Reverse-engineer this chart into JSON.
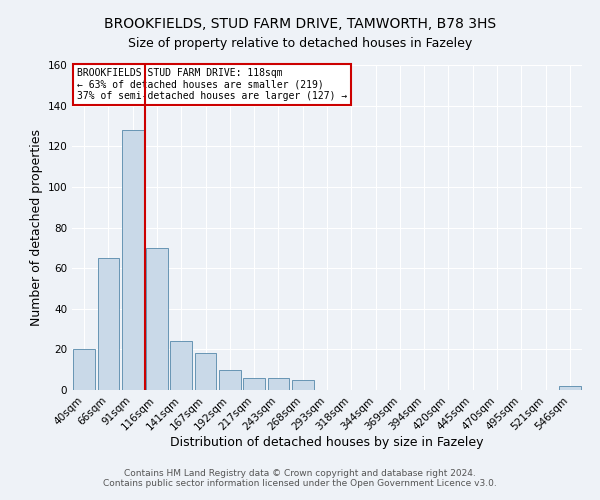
{
  "title": "BROOKFIELDS, STUD FARM DRIVE, TAMWORTH, B78 3HS",
  "subtitle": "Size of property relative to detached houses in Fazeley",
  "xlabel": "Distribution of detached houses by size in Fazeley",
  "ylabel": "Number of detached properties",
  "bin_labels": [
    "40sqm",
    "66sqm",
    "91sqm",
    "116sqm",
    "141sqm",
    "167sqm",
    "192sqm",
    "217sqm",
    "243sqm",
    "268sqm",
    "293sqm",
    "318sqm",
    "344sqm",
    "369sqm",
    "394sqm",
    "420sqm",
    "445sqm",
    "470sqm",
    "495sqm",
    "521sqm",
    "546sqm"
  ],
  "bar_values": [
    20,
    65,
    128,
    70,
    24,
    18,
    10,
    6,
    6,
    5,
    0,
    0,
    0,
    0,
    0,
    0,
    0,
    0,
    0,
    0,
    2
  ],
  "bar_color": "#c9d9e8",
  "bar_edge_color": "#5588aa",
  "vline_color": "#cc0000",
  "ylim": [
    0,
    160
  ],
  "yticks": [
    0,
    20,
    40,
    60,
    80,
    100,
    120,
    140,
    160
  ],
  "annotation_box_text": "BROOKFIELDS STUD FARM DRIVE: 118sqm\n← 63% of detached houses are smaller (219)\n37% of semi-detached houses are larger (127) →",
  "annotation_box_color": "#cc0000",
  "footer_line1": "Contains HM Land Registry data © Crown copyright and database right 2024.",
  "footer_line2": "Contains public sector information licensed under the Open Government Licence v3.0.",
  "bg_color": "#eef2f7",
  "grid_color": "#ffffff",
  "title_fontsize": 10,
  "subtitle_fontsize": 9,
  "axis_label_fontsize": 9,
  "tick_fontsize": 7.5,
  "footer_fontsize": 6.5
}
